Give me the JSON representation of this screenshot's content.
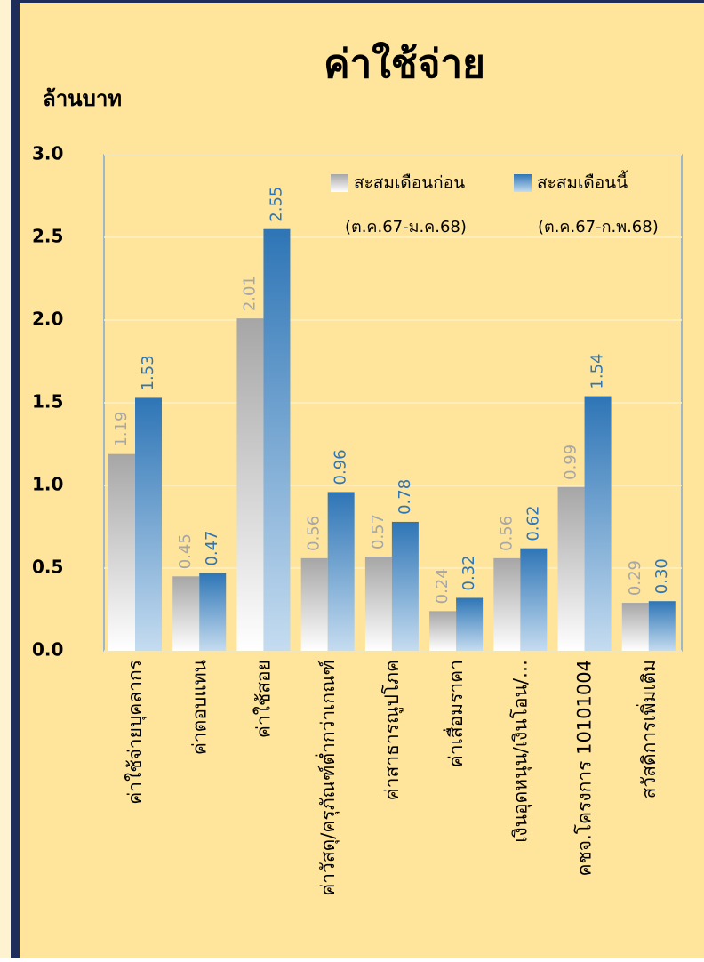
{
  "chart_data": {
    "type": "bar",
    "title": "ค่าใช้จ่าย",
    "y_axis_label": "ล้านบาท",
    "categories": [
      "ค่าใช้จ่ายบุคลากร",
      "ค่าตอบแทน",
      "ค่าใช้สอย",
      "ค่าวัสดุ/ครุภัณฑ์ต่ำกว่าเกณฑ์",
      "ค่าสาธารณูปโภค",
      "ค่าเสื่อมราคา",
      "เงินอุดหนุน/เงินโอน/…",
      "คชจ.โครงการ 10101004",
      "สวัสดิการเพิ่มเติม"
    ],
    "series": [
      {
        "name": "สะสมเดือนก่อน",
        "color": "#a6a6a6",
        "values": [
          1.19,
          0.45,
          2.01,
          0.56,
          0.57,
          0.24,
          0.56,
          0.99,
          0.29
        ],
        "value_labels": [
          "1.19",
          "0.45",
          "2.01",
          "0.56",
          "0.57",
          "0.24",
          "0.56",
          "0.99",
          "0.29"
        ]
      },
      {
        "name": "สะสมเดือนนี้",
        "color": "#2e75b6",
        "values": [
          1.53,
          0.47,
          2.55,
          0.96,
          0.78,
          0.32,
          0.62,
          1.54,
          0.3
        ],
        "value_labels": [
          "1.53",
          "0.47",
          "2.55",
          "0.96",
          "0.78",
          "0.32",
          "0.62",
          "1.54",
          "0.30"
        ]
      }
    ],
    "legend_subtitles": [
      "(ต.ค.67-ม.ค.68)",
      "(ต.ค.67-ก.พ.68)"
    ],
    "ylim": [
      0,
      3
    ],
    "yticks": [
      {
        "value": 0,
        "label": "0.0"
      },
      0.5,
      {
        "value": 1,
        "label": "1.0"
      },
      1.5,
      {
        "value": 2,
        "label": "2.0"
      },
      2.5,
      {
        "value": 3,
        "label": "3.0"
      }
    ],
    "grid": true
  }
}
